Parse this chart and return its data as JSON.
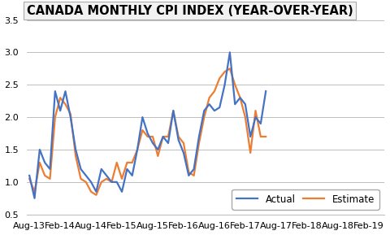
{
  "title": "CANADA MONTHLY CPI INDEX (YEAR-OVER-YEAR)",
  "actual": [
    1.1,
    0.75,
    1.5,
    1.3,
    1.2,
    2.4,
    2.1,
    2.4,
    2.0,
    1.5,
    1.2,
    1.1,
    1.0,
    0.85,
    1.2,
    1.1,
    1.0,
    1.0,
    0.85,
    1.2,
    1.1,
    1.5,
    2.0,
    1.75,
    1.6,
    1.5,
    1.7,
    1.6,
    2.1,
    1.65,
    1.45,
    1.1,
    1.2,
    1.7,
    2.1,
    2.2,
    2.1,
    2.15,
    2.5,
    3.0,
    2.2,
    2.3,
    2.2,
    1.7,
    2.0,
    1.9,
    2.4
  ],
  "estimate": [
    1.05,
    0.85,
    1.3,
    1.1,
    1.05,
    2.0,
    2.3,
    2.2,
    2.05,
    1.4,
    1.05,
    1.0,
    0.85,
    0.8,
    1.0,
    1.05,
    1.0,
    1.3,
    1.05,
    1.3,
    1.3,
    1.5,
    1.8,
    1.7,
    1.7,
    1.4,
    1.7,
    1.7,
    2.1,
    1.7,
    1.6,
    1.15,
    1.1,
    1.6,
    2.0,
    2.3,
    2.4,
    2.6,
    2.7,
    2.75,
    2.5,
    2.3,
    2.0,
    1.45,
    2.1,
    1.7,
    1.7
  ],
  "n_points": 47,
  "x_tick_labels": [
    "Aug-13",
    "Feb-14",
    "Aug-14",
    "Feb-15",
    "Aug-15",
    "Feb-16",
    "Aug-16",
    "Feb-17",
    "Aug-17",
    "Feb-18",
    "Aug-18",
    "Feb-19"
  ],
  "x_tick_positions": [
    0,
    6,
    12,
    18,
    24,
    30,
    36,
    42,
    48,
    54,
    60,
    66
  ],
  "xlim_min": -0.5,
  "xlim_max": 69,
  "ylim": [
    0.5,
    3.5
  ],
  "yticks": [
    0.5,
    1.0,
    1.5,
    2.0,
    2.5,
    3.0,
    3.5
  ],
  "actual_color": "#4472C4",
  "estimate_color": "#ED7D31",
  "actual_label": "Actual",
  "estimate_label": "Estimate",
  "line_width": 1.6,
  "bg_color": "#FFFFFF",
  "grid_color": "#BFBFBF",
  "title_box_facecolor": "#F2F2F2",
  "title_box_edgecolor": "#AAAAAA",
  "title_fontsize": 10.5,
  "tick_fontsize": 8,
  "legend_fontsize": 8.5
}
